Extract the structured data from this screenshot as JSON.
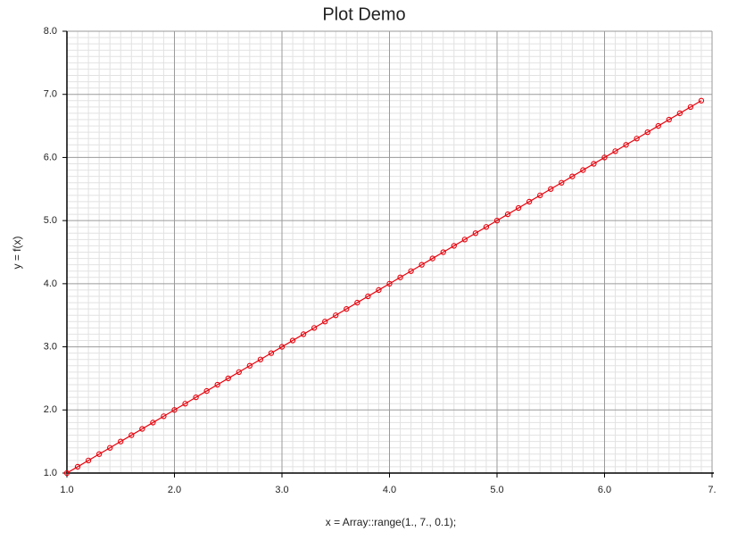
{
  "chart_data": {
    "type": "line",
    "title": "Plot Demo",
    "x_label": "x = Array::range(1., 7., 0.1);",
    "y_label": "y = f(x)",
    "x": [
      1,
      1.1,
      1.2,
      1.3,
      1.4,
      1.5,
      1.6,
      1.7,
      1.8,
      1.9,
      2,
      2.1,
      2.2,
      2.3,
      2.4,
      2.5,
      2.6,
      2.7,
      2.8,
      2.9,
      3,
      3.1,
      3.2,
      3.3,
      3.4,
      3.5,
      3.6,
      3.7,
      3.8,
      3.9,
      4,
      4.1,
      4.2,
      4.3,
      4.4,
      4.5,
      4.6,
      4.7,
      4.8,
      4.9,
      5,
      5.1,
      5.2,
      5.3,
      5.4,
      5.5,
      5.6,
      5.7,
      5.8,
      5.9,
      6,
      6.1,
      6.2,
      6.3,
      6.4,
      6.5,
      6.6,
      6.7,
      6.8,
      6.9
    ],
    "series": [
      {
        "color": "#e8000b",
        "values": [
          1,
          1.1,
          1.2,
          1.3,
          1.4,
          1.5,
          1.6,
          1.7,
          1.8,
          1.9,
          2,
          2.1,
          2.2,
          2.3,
          2.4,
          2.5,
          2.6,
          2.7,
          2.8,
          2.9,
          3,
          3.1,
          3.2,
          3.3,
          3.4,
          3.5,
          3.6,
          3.7,
          3.8,
          3.9,
          4,
          4.1,
          4.2,
          4.3,
          4.4,
          4.5,
          4.6,
          4.7,
          4.8,
          4.9,
          5,
          5.1,
          5.2,
          5.3,
          5.4,
          5.5,
          5.6,
          5.7,
          5.8,
          5.9,
          6,
          6.1,
          6.2,
          6.3,
          6.4,
          6.5,
          6.6,
          6.7,
          6.8,
          6.9
        ]
      }
    ],
    "xlim": [
      1,
      7
    ],
    "ylim": [
      1,
      8
    ],
    "xticks": [
      {
        "value": 1,
        "label": "1.0"
      },
      {
        "value": 2,
        "label": "2.0"
      },
      {
        "value": 3,
        "label": "3.0"
      },
      {
        "value": 4,
        "label": "4.0"
      },
      {
        "value": 5,
        "label": "5.0"
      },
      {
        "value": 6,
        "label": "6.0"
      },
      {
        "value": 7,
        "label": "7."
      }
    ],
    "yticks": [
      {
        "value": 1,
        "label": "1.0"
      },
      {
        "value": 2,
        "label": "2.0"
      },
      {
        "value": 3,
        "label": "3.0"
      },
      {
        "value": 4,
        "label": "4.0"
      },
      {
        "value": 5,
        "label": "5.0"
      },
      {
        "value": 6,
        "label": "6.0"
      },
      {
        "value": 7,
        "label": "7.0"
      },
      {
        "value": 8,
        "label": "8.0"
      }
    ],
    "grid": true,
    "minor_grid": true
  }
}
